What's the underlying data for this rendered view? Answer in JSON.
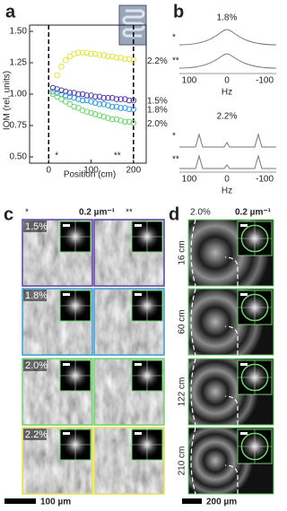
{
  "labels": {
    "a": "a",
    "b": "b",
    "c": "c",
    "d": "d"
  },
  "chart_data": {
    "type": "scatter",
    "ylabel": "IOM (rel. units)",
    "xlabel": "Position (cm)",
    "xlim": [
      -45,
      230
    ],
    "xticks": [
      0,
      100,
      200
    ],
    "ylim": [
      0.45,
      1.55
    ],
    "yticks": [
      {
        "value": 0.5,
        "label": "0.50"
      },
      {
        "value": 0.75,
        "label": "0.75"
      },
      {
        "value": 1,
        "label": "1.00"
      },
      {
        "value": 1.25,
        "label": "1.25"
      },
      {
        "value": 1.5,
        "label": "1.50"
      }
    ],
    "dashed_lines": [
      0,
      200
    ],
    "annotations": [
      "*",
      "**"
    ],
    "x": [
      10,
      20,
      30,
      40,
      50,
      60,
      70,
      80,
      90,
      100,
      110,
      120,
      130,
      140,
      150,
      160,
      170,
      180,
      190,
      200
    ],
    "series": [
      {
        "name": "2.2%",
        "color": "#e3e34a",
        "values": [
          1.05,
          1.15,
          1.22,
          1.27,
          1.3,
          1.32,
          1.33,
          1.33,
          1.33,
          1.32,
          1.32,
          1.31,
          1.31,
          1.3,
          1.3,
          1.29,
          1.29,
          1.28,
          1.28,
          1.27
        ]
      },
      {
        "name": "1.5%",
        "color": "#5b3fa6",
        "values": [
          1.05,
          1.04,
          1.03,
          1.02,
          1.01,
          1.01,
          1.0,
          1.0,
          0.99,
          0.99,
          0.98,
          0.98,
          0.97,
          0.97,
          0.97,
          0.96,
          0.96,
          0.96,
          0.95,
          0.95
        ]
      },
      {
        "name": "1.8%",
        "color": "#3a9bd6",
        "values": [
          1.02,
          1.01,
          1.0,
          0.99,
          0.98,
          0.97,
          0.96,
          0.95,
          0.95,
          0.94,
          0.93,
          0.92,
          0.92,
          0.91,
          0.9,
          0.9,
          0.89,
          0.89,
          0.88,
          0.88
        ]
      },
      {
        "name": "2.0%",
        "color": "#6fd36f",
        "values": [
          1.0,
          0.98,
          0.96,
          0.94,
          0.92,
          0.9,
          0.89,
          0.87,
          0.86,
          0.85,
          0.84,
          0.83,
          0.82,
          0.81,
          0.8,
          0.8,
          0.79,
          0.78,
          0.78,
          0.77
        ]
      }
    ]
  },
  "panel_b": {
    "spectra": [
      {
        "title": "1.8%",
        "rows": [
          "*",
          "**"
        ],
        "xticks": [
          100,
          0,
          -100
        ],
        "xlabel": "Hz"
      },
      {
        "title": "2.2%",
        "rows": [
          "*",
          "**"
        ],
        "xticks": [
          100,
          0,
          -100
        ],
        "xlabel": "Hz"
      }
    ]
  },
  "panel_c": {
    "columns": [
      "*",
      "0.2 µm⁻¹",
      "**"
    ],
    "rows": [
      "1.5%",
      "1.8%",
      "2.0%",
      "2.2%"
    ],
    "scale_bar": "100 µm"
  },
  "panel_d": {
    "title": "2.0%",
    "inset_scale": "0.2 µm⁻¹",
    "rows": [
      "16 cm",
      "60 cm",
      "122 cm",
      "210 cm"
    ],
    "scale_bar": "200 µm"
  }
}
